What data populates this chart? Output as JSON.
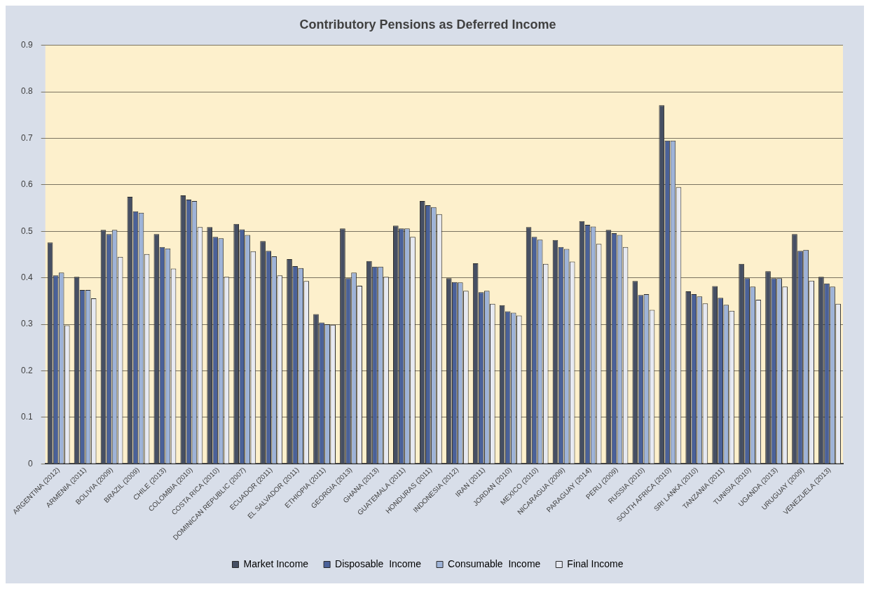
{
  "chart_data": {
    "type": "bar",
    "title": "Contributory Pensions as Deferred Income",
    "categories": [
      "ARGENTINA (2012)",
      "ARMENIA (2011)",
      "BOLIVIA (2009)",
      "BRAZIL (2009)",
      "CHILE (2013)",
      "COLOMBIA (2010)",
      "COSTA RICA (2010)",
      "DOMINICAN REPUBLIC (2007)",
      "ECUADOR (2011)",
      "EL SALVADOR (2011)",
      "ETHIOPIA (2011)",
      "GEORGIA (2013)",
      "GHANA (2013)",
      "GUATEMALA (2011)",
      "HONDURAS (2011)",
      "INDONESIA (2012)",
      "IRAN (2011)",
      "JORDAN (2010)",
      "MEXICO (2010)",
      "NICARAGUA (2009)",
      "PARAGUAY (2014)",
      "PERU (2009)",
      "RUSSIA (2010)",
      "SOUTH AFRICA (2010)",
      "SRI LANKA (2010)",
      "TANZANIA (2011)",
      "TUNISIA (2010)",
      "UGANDA (2013)",
      "URUGUAY (2009)",
      "VENEZUELA (2013)"
    ],
    "series": [
      {
        "name": "Market Income",
        "color": "#464f63",
        "values": [
          0.476,
          0.402,
          0.503,
          0.574,
          0.494,
          0.577,
          0.509,
          0.516,
          0.479,
          0.44,
          0.322,
          0.506,
          0.436,
          0.512,
          0.565,
          0.399,
          0.431,
          0.341,
          0.509,
          0.481,
          0.522,
          0.503,
          0.393,
          0.771,
          0.371,
          0.382,
          0.43,
          0.414,
          0.494,
          0.402
        ]
      },
      {
        "name": "Disposable  Income",
        "color": "#4a6199",
        "values": [
          0.405,
          0.374,
          0.494,
          0.543,
          0.466,
          0.568,
          0.488,
          0.504,
          0.458,
          0.425,
          0.304,
          0.399,
          0.424,
          0.506,
          0.556,
          0.391,
          0.369,
          0.328,
          0.488,
          0.466,
          0.514,
          0.496,
          0.363,
          0.695,
          0.365,
          0.357,
          0.399,
          0.399,
          0.458,
          0.388
        ]
      },
      {
        "name": "Consumable  Income",
        "color": "#9eb3d8",
        "values": [
          0.411,
          0.374,
          0.503,
          0.54,
          0.463,
          0.565,
          0.485,
          0.492,
          0.446,
          0.421,
          0.3,
          0.411,
          0.424,
          0.506,
          0.552,
          0.39,
          0.372,
          0.325,
          0.482,
          0.462,
          0.51,
          0.492,
          0.365,
          0.695,
          0.36,
          0.342,
          0.381,
          0.399,
          0.46,
          0.381
        ]
      },
      {
        "name": "Final Income",
        "color": "#e6e9f2",
        "values": [
          0.298,
          0.356,
          0.445,
          0.451,
          0.42,
          0.509,
          0.402,
          0.457,
          0.405,
          0.393,
          0.299,
          0.383,
          0.402,
          0.488,
          0.537,
          0.372,
          0.344,
          0.319,
          0.43,
          0.435,
          0.473,
          0.466,
          0.331,
          0.595,
          0.345,
          0.329,
          0.353,
          0.381,
          0.394,
          0.344
        ]
      }
    ],
    "ylim": [
      0,
      0.9
    ],
    "yticks": [
      0,
      0.1,
      0.2,
      0.3,
      0.4,
      0.5,
      0.6,
      0.7,
      0.8,
      0.9
    ],
    "grid": "y",
    "legend": "bottom"
  }
}
